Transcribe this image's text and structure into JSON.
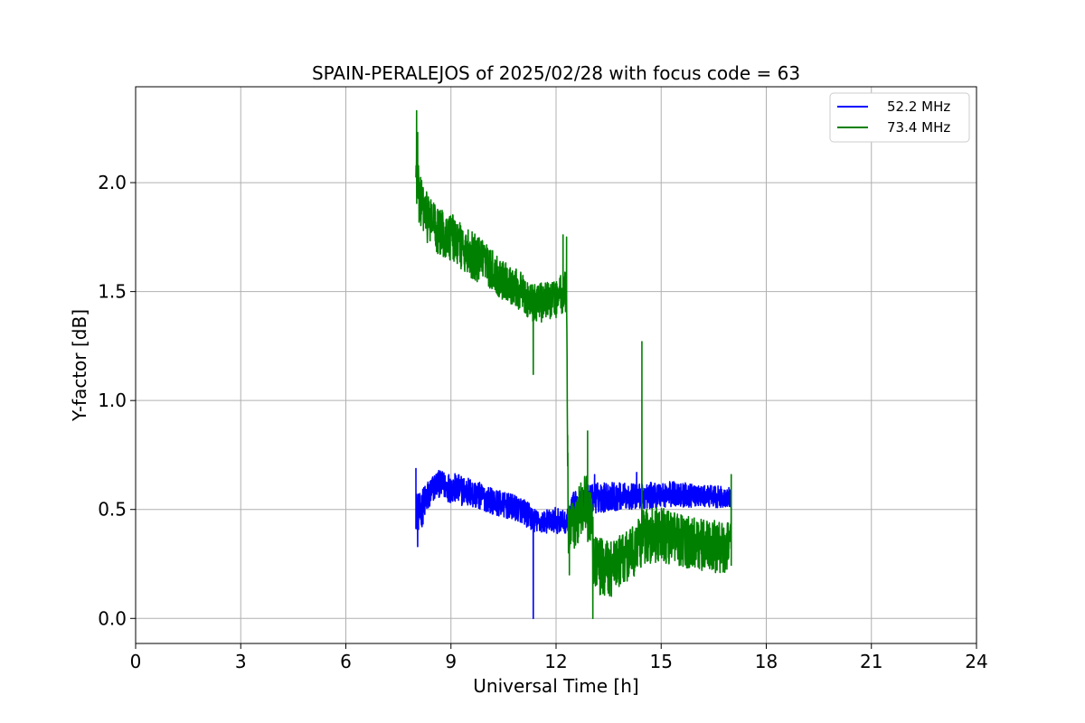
{
  "chart_data": {
    "type": "line",
    "title": "SPAIN-PERALEJOS of 2025/02/28 with focus code = 63",
    "xlabel": "Universal Time [h]",
    "ylabel": "Y-factor [dB]",
    "xlim": [
      0,
      24
    ],
    "ylim": [
      -0.115,
      2.44
    ],
    "xticks": [
      0,
      3,
      6,
      9,
      12,
      15,
      18,
      21,
      24
    ],
    "yticks": [
      0.0,
      0.5,
      1.0,
      1.5,
      2.0
    ],
    "ytick_labels": [
      "0.0",
      "0.5",
      "1.0",
      "1.5",
      "2.0"
    ],
    "grid": true,
    "legend_position": "top-right",
    "series": [
      {
        "name": "52.2 MHz",
        "legend_label": "52.2 MHz",
        "color": "#0000ff",
        "x": [
          8.0,
          8.1,
          8.3,
          8.6,
          9.0,
          9.5,
          10.0,
          10.5,
          11.0,
          11.3,
          11.5,
          12.0,
          12.3,
          12.5,
          13.0,
          13.5,
          14.0,
          14.5,
          15.0,
          15.5,
          16.0,
          16.5,
          17.0
        ],
        "y": [
          0.5,
          0.48,
          0.55,
          0.62,
          0.6,
          0.58,
          0.55,
          0.52,
          0.5,
          0.46,
          0.44,
          0.45,
          0.44,
          0.52,
          0.55,
          0.56,
          0.56,
          0.56,
          0.57,
          0.57,
          0.56,
          0.56,
          0.55
        ],
        "spread": [
          0.09,
          0.09,
          0.08,
          0.06,
          0.07,
          0.07,
          0.06,
          0.06,
          0.06,
          0.06,
          0.05,
          0.06,
          0.05,
          0.06,
          0.07,
          0.07,
          0.06,
          0.06,
          0.06,
          0.06,
          0.05,
          0.05,
          0.05
        ],
        "spikes": [
          [
            8.0,
            0.69
          ],
          [
            8.05,
            0.33
          ],
          [
            11.35,
            0.0
          ],
          [
            13.1,
            0.66
          ],
          [
            14.3,
            0.67
          ]
        ]
      },
      {
        "name": "73.4 MHz",
        "legend_label": "73.4 MHz",
        "color": "#008000",
        "x": [
          8.0,
          8.1,
          8.3,
          8.6,
          9.0,
          9.5,
          10.0,
          10.5,
          11.0,
          11.3,
          11.6,
          12.0,
          12.3,
          12.35,
          12.5,
          12.8,
          13.0,
          13.1,
          13.5,
          14.0,
          14.3,
          14.5,
          15.0,
          15.5,
          16.0,
          16.5,
          17.0
        ],
        "y": [
          2.05,
          1.92,
          1.85,
          1.78,
          1.75,
          1.68,
          1.62,
          1.55,
          1.5,
          1.45,
          1.45,
          1.47,
          1.5,
          0.4,
          0.42,
          0.55,
          0.45,
          0.25,
          0.22,
          0.28,
          0.32,
          0.38,
          0.38,
          0.36,
          0.34,
          0.33,
          0.33
        ],
        "spread": [
          0.13,
          0.12,
          0.12,
          0.11,
          0.11,
          0.11,
          0.1,
          0.09,
          0.09,
          0.09,
          0.09,
          0.09,
          0.1,
          0.12,
          0.12,
          0.15,
          0.15,
          0.14,
          0.13,
          0.12,
          0.12,
          0.13,
          0.13,
          0.12,
          0.12,
          0.12,
          0.12
        ],
        "spikes": [
          [
            8.02,
            2.33
          ],
          [
            8.05,
            2.23
          ],
          [
            11.35,
            1.12
          ],
          [
            12.2,
            1.76
          ],
          [
            12.3,
            1.75
          ],
          [
            12.33,
            0.7
          ],
          [
            12.38,
            0.2
          ],
          [
            12.9,
            0.86
          ],
          [
            13.05,
            0.0
          ],
          [
            14.45,
            1.27
          ],
          [
            14.45,
            1.1
          ],
          [
            17.0,
            0.66
          ]
        ]
      }
    ]
  }
}
